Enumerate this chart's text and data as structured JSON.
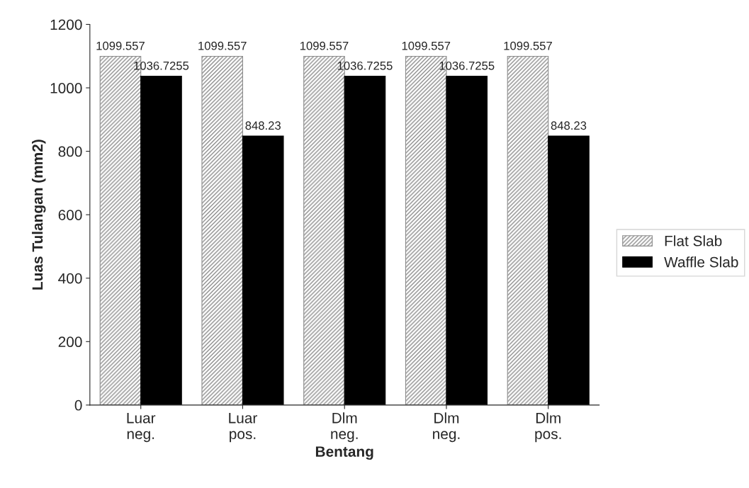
{
  "chart_data": {
    "type": "bar",
    "xlabel": "Bentang",
    "ylabel": "Luas Tulangan (mm2)",
    "categories": [
      "Luar\nneg.",
      "Luar\npos.",
      "Dlm\nneg.",
      "Dlm\nneg.",
      "Dlm\npos."
    ],
    "series": [
      {
        "name": "Flat Slab",
        "color": "#8c8c8c",
        "values": [
          1099.557,
          1099.557,
          1099.557,
          1099.557,
          1099.557
        ]
      },
      {
        "name": "Waffle Slab",
        "color": "#000000",
        "values": [
          1036.7255,
          848.23,
          1036.7255,
          1036.7255,
          848.23
        ]
      }
    ],
    "ylim": [
      0,
      1200
    ],
    "yticks": [
      0,
      200,
      400,
      600,
      800,
      1000,
      1200
    ],
    "data_labels": true,
    "grid": false,
    "legend": "right"
  }
}
